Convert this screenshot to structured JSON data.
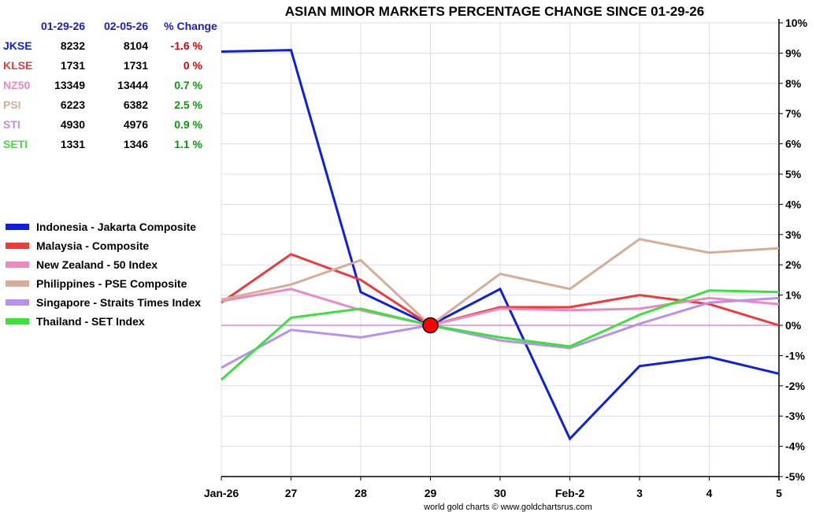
{
  "chart_data": {
    "type": "line",
    "title": "ASIAN MINOR MARKETS PERCENTAGE CHANGE SINCE 01-29-26",
    "categories": [
      "Jan-26",
      "27",
      "28",
      "29",
      "30",
      "Feb-2",
      "3",
      "4",
      "5"
    ],
    "ylim": [
      -5,
      10
    ],
    "yticks": [
      -5,
      -4,
      -3,
      -2,
      -1,
      0,
      1,
      2,
      3,
      4,
      5,
      6,
      7,
      8,
      9,
      10
    ],
    "ytick_labels": [
      "-5%",
      "-4%",
      "-3%",
      "-2%",
      "-1%",
      "0%",
      "1%",
      "2%",
      "3%",
      "4%",
      "5%",
      "6%",
      "7%",
      "8%",
      "9%",
      "10%"
    ],
    "reference_point": {
      "category": "29",
      "value": 0
    },
    "series": [
      {
        "name": "Indonesia - Jakarta Composite",
        "color": "#0d1fe6",
        "values": [
          9.05,
          9.1,
          1.1,
          0,
          1.2,
          -3.75,
          -1.35,
          -1.05,
          -1.6
        ]
      },
      {
        "name": "Malaysia - Composite",
        "color": "#f03a3a",
        "values": [
          0.75,
          2.35,
          1.5,
          0,
          0.6,
          0.6,
          1.0,
          0.7,
          0
        ]
      },
      {
        "name": "New Zealand - 50 Index",
        "color": "#ee88c0",
        "values": [
          0.8,
          1.2,
          0.5,
          0,
          0.55,
          0.5,
          0.55,
          0.9,
          0.7
        ]
      },
      {
        "name": "Philippines - PSE Composite",
        "color": "#d6ad96",
        "values": [
          0.85,
          1.35,
          2.15,
          0,
          1.7,
          1.2,
          2.85,
          2.4,
          2.55
        ]
      },
      {
        "name": "Singapore - Straits Times Index",
        "color": "#b990ec",
        "values": [
          -1.4,
          -0.15,
          -0.4,
          0,
          -0.5,
          -0.75,
          0.05,
          0.75,
          0.9
        ]
      },
      {
        "name": "Thailand - SET Index",
        "color": "#3ce23c",
        "values": [
          -1.8,
          0.25,
          0.55,
          0,
          -0.4,
          -0.7,
          0.35,
          1.15,
          1.1
        ]
      }
    ],
    "legend_position": "left"
  },
  "table": {
    "headers": [
      "",
      "01-29-26",
      "02-05-26",
      "% Change"
    ],
    "rows": [
      {
        "symbol": "JKSE",
        "v1": "8232",
        "v2": "8104",
        "chg": "-1.6 %",
        "symbol_color": "#0d1fe6",
        "chg_color": "#e00000"
      },
      {
        "symbol": "KLSE",
        "v1": "1731",
        "v2": "1731",
        "chg": "0 %",
        "symbol_color": "#f03a3a",
        "chg_color": "#e00000"
      },
      {
        "symbol": "NZ50",
        "v1": "13349",
        "v2": "13444",
        "chg": "0.7 %",
        "symbol_color": "#ee88c0",
        "chg_color": "#0a9a0a"
      },
      {
        "symbol": "PSI",
        "v1": "6223",
        "v2": "6382",
        "chg": "2.5 %",
        "symbol_color": "#d6ad96",
        "chg_color": "#0a9a0a"
      },
      {
        "symbol": "STI",
        "v1": "4930",
        "v2": "4976",
        "chg": "0.9 %",
        "symbol_color": "#b990ec",
        "chg_color": "#0a9a0a"
      },
      {
        "symbol": "SETI",
        "v1": "1331",
        "v2": "1346",
        "chg": "1.1 %",
        "symbol_color": "#3ce23c",
        "chg_color": "#0a9a0a"
      }
    ]
  },
  "colors": {
    "title": "#1a1adb",
    "header": "#1a1adb",
    "grid": "#dcdcf0",
    "zero_line": "#d04cd0",
    "marker": "#ff0000"
  },
  "credit": "world gold charts © www.goldchartsrus.com"
}
